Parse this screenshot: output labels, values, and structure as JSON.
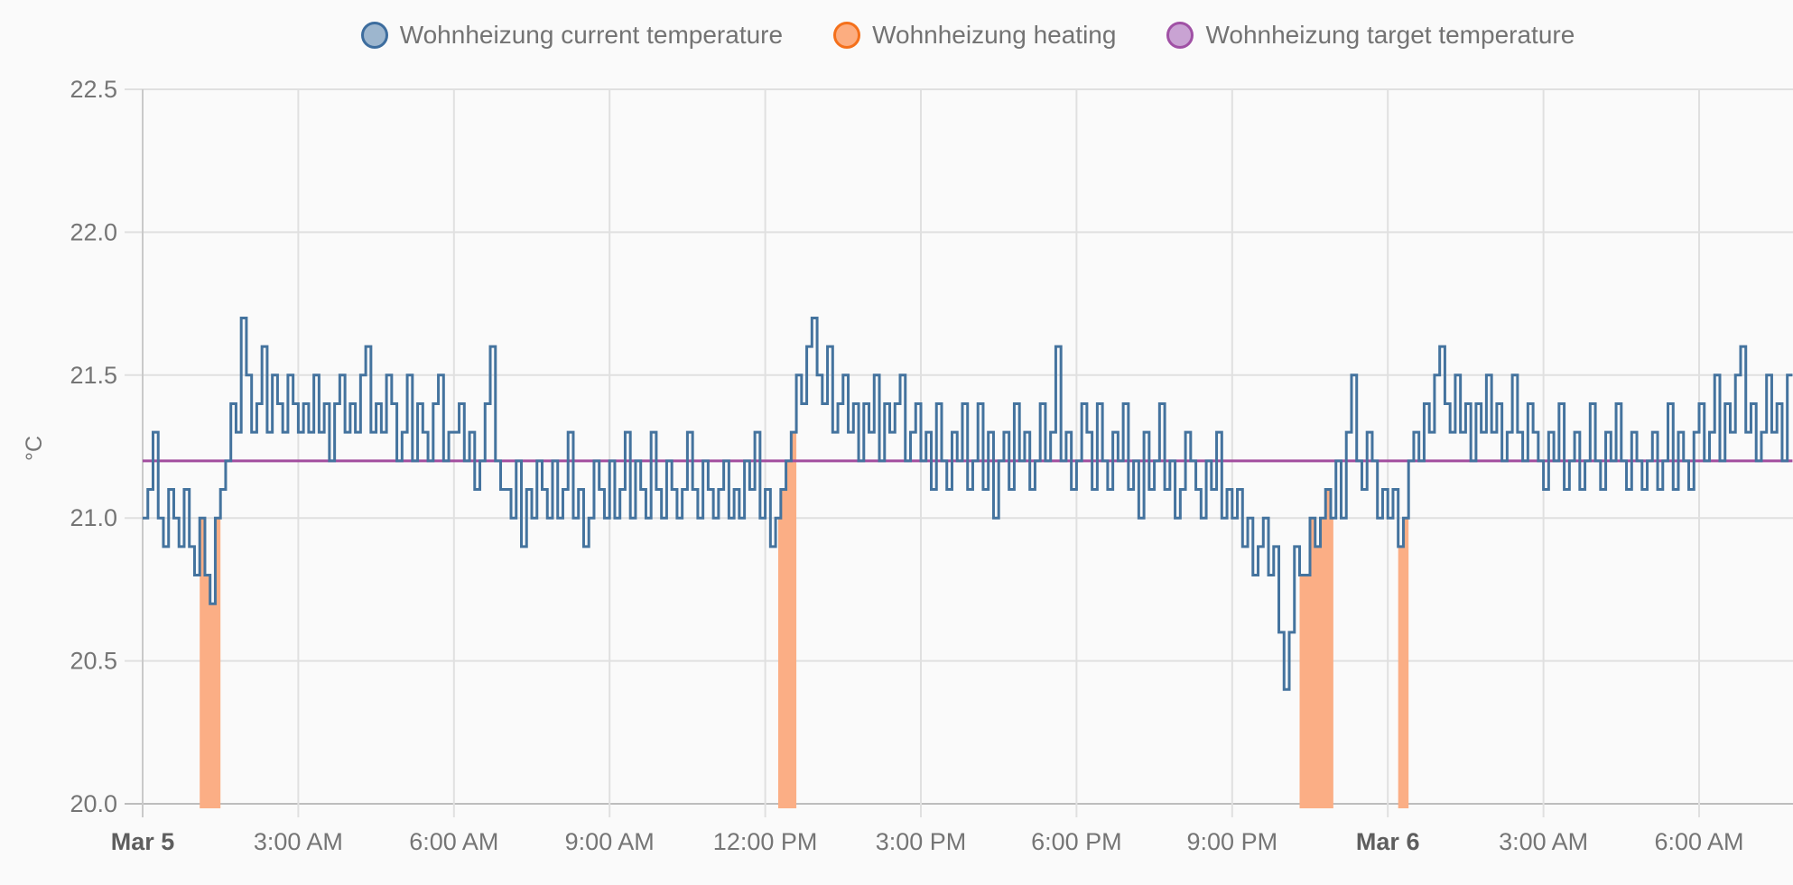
{
  "legend": {
    "items": [
      {
        "id": "current-temperature",
        "label": "Wohnheizung current temperature",
        "swatch_fill": "#9db6ce",
        "swatch_border": "#3d6d9e"
      },
      {
        "id": "heating",
        "label": "Wohnheizung heating",
        "swatch_fill": "#fcad80",
        "swatch_border": "#f4701b"
      },
      {
        "id": "target-temperature",
        "label": "Wohnheizung target temperature",
        "swatch_fill": "#c9a3d3",
        "swatch_border": "#a051a5"
      }
    ],
    "position": "top-center"
  },
  "chart_data": {
    "type": "line",
    "title": "",
    "xlabel": "",
    "ylabel": "°C",
    "ylim": [
      20.0,
      22.5
    ],
    "grid": true,
    "yticks": [
      {
        "value": 22.5,
        "label": "22.5"
      },
      {
        "value": 22.0,
        "label": "22.0"
      },
      {
        "value": 21.5,
        "label": "21.5"
      },
      {
        "value": 21.0,
        "label": "21.0"
      },
      {
        "value": 20.5,
        "label": "20.5"
      },
      {
        "value": 20.0,
        "label": "20.0"
      }
    ],
    "x_range_hours": [
      0,
      31.8
    ],
    "x_hours_per_gridline": 3,
    "xticks": [
      {
        "t": 0,
        "label": "Mar 5",
        "bold": true
      },
      {
        "t": 3,
        "label": "3:00 AM",
        "bold": false
      },
      {
        "t": 6,
        "label": "6:00 AM",
        "bold": false
      },
      {
        "t": 9,
        "label": "9:00 AM",
        "bold": false
      },
      {
        "t": 12,
        "label": "12:00 PM",
        "bold": false
      },
      {
        "t": 15,
        "label": "3:00 PM",
        "bold": false
      },
      {
        "t": 18,
        "label": "6:00 PM",
        "bold": false
      },
      {
        "t": 21,
        "label": "9:00 PM",
        "bold": false
      },
      {
        "t": 24,
        "label": "Mar 6",
        "bold": true
      },
      {
        "t": 27,
        "label": "3:00 AM",
        "bold": false
      },
      {
        "t": 30,
        "label": "6:00 AM",
        "bold": false
      }
    ],
    "series": [
      {
        "name": "Wohnheizung current temperature",
        "render": "step",
        "color": "#44739e",
        "line_width": 3,
        "t0_hours": 0,
        "dt_hours": 0.1,
        "unit": "°C",
        "values": [
          21.0,
          21.1,
          21.3,
          21.0,
          20.9,
          21.1,
          21.0,
          20.9,
          21.1,
          20.9,
          20.8,
          21.0,
          20.8,
          20.7,
          21.0,
          21.1,
          21.2,
          21.4,
          21.3,
          21.7,
          21.5,
          21.3,
          21.4,
          21.6,
          21.3,
          21.5,
          21.4,
          21.3,
          21.5,
          21.4,
          21.3,
          21.4,
          21.3,
          21.5,
          21.3,
          21.4,
          21.2,
          21.4,
          21.5,
          21.3,
          21.4,
          21.3,
          21.5,
          21.6,
          21.3,
          21.4,
          21.3,
          21.5,
          21.4,
          21.2,
          21.3,
          21.5,
          21.2,
          21.4,
          21.3,
          21.2,
          21.4,
          21.5,
          21.2,
          21.3,
          21.3,
          21.4,
          21.2,
          21.3,
          21.1,
          21.2,
          21.4,
          21.6,
          21.2,
          21.1,
          21.1,
          21.0,
          21.2,
          20.9,
          21.1,
          21.0,
          21.2,
          21.1,
          21.0,
          21.2,
          21.0,
          21.1,
          21.3,
          21.0,
          21.1,
          20.9,
          21.0,
          21.2,
          21.1,
          21.0,
          21.2,
          21.0,
          21.1,
          21.3,
          21.0,
          21.2,
          21.1,
          21.0,
          21.3,
          21.1,
          21.0,
          21.2,
          21.1,
          21.0,
          21.1,
          21.3,
          21.1,
          21.0,
          21.2,
          21.1,
          21.0,
          21.1,
          21.2,
          21.0,
          21.1,
          21.0,
          21.2,
          21.1,
          21.3,
          21.0,
          21.1,
          20.9,
          21.0,
          21.1,
          21.2,
          21.3,
          21.5,
          21.4,
          21.6,
          21.7,
          21.5,
          21.4,
          21.6,
          21.3,
          21.4,
          21.5,
          21.3,
          21.4,
          21.2,
          21.4,
          21.3,
          21.5,
          21.2,
          21.4,
          21.3,
          21.4,
          21.5,
          21.2,
          21.3,
          21.4,
          21.2,
          21.3,
          21.1,
          21.4,
          21.2,
          21.1,
          21.3,
          21.2,
          21.4,
          21.1,
          21.2,
          21.4,
          21.1,
          21.3,
          21.0,
          21.2,
          21.3,
          21.1,
          21.4,
          21.2,
          21.3,
          21.1,
          21.2,
          21.4,
          21.2,
          21.3,
          21.6,
          21.2,
          21.3,
          21.1,
          21.2,
          21.4,
          21.3,
          21.1,
          21.4,
          21.2,
          21.1,
          21.3,
          21.2,
          21.4,
          21.1,
          21.2,
          21.0,
          21.3,
          21.1,
          21.2,
          21.4,
          21.1,
          21.2,
          21.0,
          21.1,
          21.3,
          21.2,
          21.1,
          21.0,
          21.2,
          21.1,
          21.3,
          21.0,
          21.1,
          21.0,
          21.1,
          20.9,
          21.0,
          20.8,
          20.9,
          21.0,
          20.8,
          20.9,
          20.6,
          20.4,
          20.6,
          20.9,
          20.8,
          20.8,
          21.0,
          20.9,
          21.0,
          21.1,
          21.0,
          21.2,
          21.0,
          21.3,
          21.5,
          21.2,
          21.1,
          21.3,
          21.2,
          21.0,
          21.1,
          21.0,
          21.1,
          20.9,
          21.0,
          21.2,
          21.3,
          21.2,
          21.4,
          21.3,
          21.5,
          21.6,
          21.4,
          21.3,
          21.5,
          21.3,
          21.4,
          21.2,
          21.4,
          21.3,
          21.5,
          21.3,
          21.4,
          21.2,
          21.3,
          21.5,
          21.3,
          21.2,
          21.4,
          21.3,
          21.2,
          21.1,
          21.3,
          21.2,
          21.4,
          21.1,
          21.2,
          21.3,
          21.1,
          21.2,
          21.4,
          21.2,
          21.1,
          21.3,
          21.2,
          21.4,
          21.2,
          21.1,
          21.3,
          21.2,
          21.1,
          21.2,
          21.3,
          21.1,
          21.2,
          21.4,
          21.1,
          21.3,
          21.2,
          21.1,
          21.3,
          21.4,
          21.2,
          21.3,
          21.5,
          21.2,
          21.4,
          21.3,
          21.5,
          21.6,
          21.3,
          21.4,
          21.2,
          21.3,
          21.5,
          21.3,
          21.4,
          21.2,
          21.5
        ]
      },
      {
        "name": "Wohnheizung target temperature",
        "render": "hline",
        "color": "#a24d9e",
        "line_width": 3,
        "unit": "°C",
        "value": 21.2,
        "t_start": 0,
        "t_end": 31.8
      },
      {
        "name": "Wohnheizung heating",
        "render": "on_intervals_fill_under_curve",
        "color": "#fbae85",
        "intervals_hours": [
          [
            1.1,
            1.5
          ],
          [
            12.25,
            12.6
          ],
          [
            22.3,
            22.95
          ],
          [
            24.2,
            24.4
          ]
        ]
      }
    ],
    "colors": {
      "background": "#fafafa",
      "gridline": "#e0e0e0",
      "axis_line": "#bdbdbd",
      "tick_label": "#757575",
      "tick_label_bold": "#5e5e5e"
    },
    "legend_position": "top"
  }
}
